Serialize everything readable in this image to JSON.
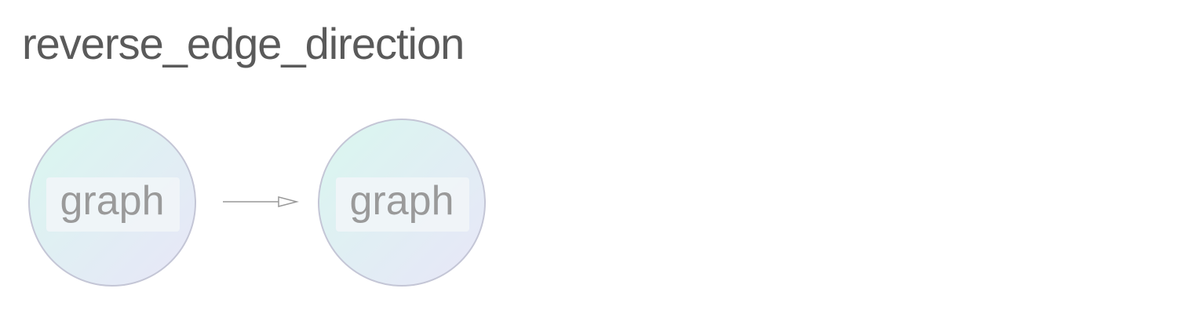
{
  "title": "reverse_edge_direction",
  "nodes": [
    {
      "id": "source",
      "label": "graph"
    },
    {
      "id": "target",
      "label": "graph"
    }
  ],
  "edges": [
    {
      "from": "source",
      "to": "target",
      "arrow": "open-triangle"
    }
  ],
  "colors": {
    "title": "#5a5a5a",
    "node_border": "#c4c6d6",
    "node_fill_start": "#d9f7ef",
    "node_fill_end": "#e7e6f7",
    "label_box": "#f1f5f8",
    "label_text": "#9a9a9a",
    "edge": "#999999"
  }
}
